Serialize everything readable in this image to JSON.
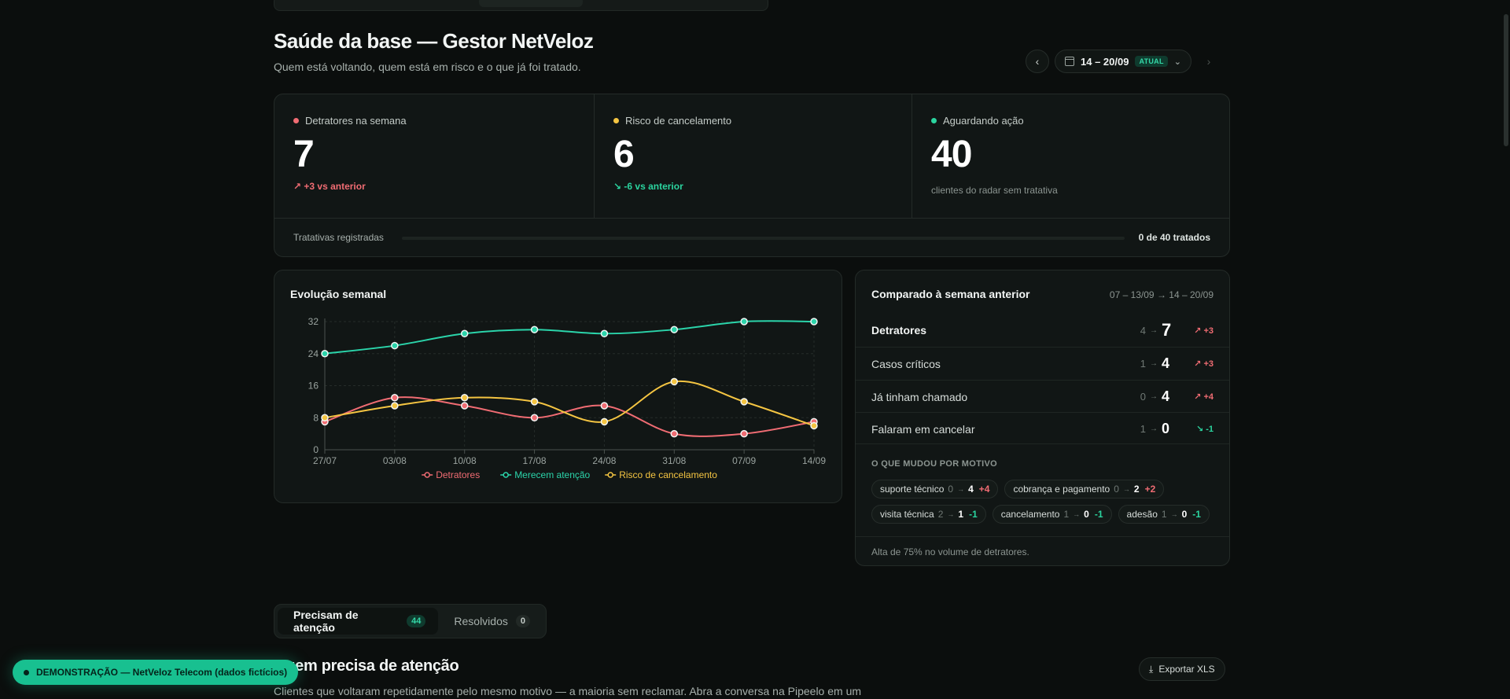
{
  "header": {
    "title": "Saúde da base — Gestor NetVeloz",
    "subtitle": "Quem está voltando, quem está em risco e o que já foi tratado."
  },
  "week_nav": {
    "range": "14 – 20/09",
    "badge": "ATUAL",
    "prev_icon": "chevron-left-icon",
    "next_icon": "chevron-right-icon"
  },
  "kpis": [
    {
      "label": "Detratores na semana",
      "value": "7",
      "delta": "+3 vs anterior",
      "color": "#f06c73"
    },
    {
      "label": "Risco de cancelamento",
      "value": "6",
      "delta": "-6 vs anterior",
      "color": "#f5c542"
    },
    {
      "label": "Aguardando ação",
      "value": "40",
      "note": "clientes do radar sem tratativa",
      "color": "#2bd49f"
    }
  ],
  "progress": {
    "label": "Tratativas registradas",
    "count": "0 de 40 tratados",
    "fraction": 0
  },
  "chart_card": {
    "title": "Evolução semanal"
  },
  "chart_data": {
    "type": "line",
    "title": "Evolução semanal",
    "x": [
      "27/07",
      "03/08",
      "10/08",
      "17/08",
      "24/08",
      "31/08",
      "07/09",
      "14/09"
    ],
    "y_ticks": [
      0,
      8,
      16,
      24,
      32
    ],
    "ylim": [
      0,
      32
    ],
    "grid": true,
    "legend_position": "bottom",
    "series": [
      {
        "name": "Detratores",
        "color": "#f06c73",
        "values": [
          7,
          13,
          11,
          8,
          11,
          4,
          4,
          7
        ]
      },
      {
        "name": "Merecem atenção",
        "color": "#2bd4aa",
        "values": [
          24,
          26,
          29,
          30,
          29,
          30,
          32,
          32
        ]
      },
      {
        "name": "Risco de cancelamento",
        "color": "#f5c542",
        "values": [
          8,
          11,
          13,
          12,
          7,
          17,
          12,
          6
        ]
      }
    ]
  },
  "comparison": {
    "title": "Comparado à semana anterior",
    "range": "07 – 13/09 → 14 – 20/09",
    "rows": [
      {
        "name": "Detratores",
        "old": "4",
        "new": "7",
        "delta": "+3",
        "dir": "up"
      },
      {
        "name": "Casos críticos",
        "old": "1",
        "new": "4",
        "delta": "+3",
        "dir": "up"
      },
      {
        "name": "Já tinham chamado",
        "old": "0",
        "new": "4",
        "delta": "+4",
        "dir": "up"
      },
      {
        "name": "Falaram em cancelar",
        "old": "1",
        "new": "0",
        "delta": "-1",
        "dir": "down"
      }
    ],
    "motivo_title": "O QUE MUDOU POR MOTIVO",
    "chips": [
      {
        "name": "suporte técnico",
        "old": "0",
        "new": "4",
        "delta": "+4",
        "dir": "up"
      },
      {
        "name": "cobrança e pagamento",
        "old": "0",
        "new": "2",
        "delta": "+2",
        "dir": "up"
      },
      {
        "name": "visita técnica",
        "old": "2",
        "new": "1",
        "delta": "-1",
        "dir": "down"
      },
      {
        "name": "cancelamento",
        "old": "1",
        "new": "0",
        "delta": "-1",
        "dir": "down"
      },
      {
        "name": "adesão",
        "old": "1",
        "new": "0",
        "delta": "-1",
        "dir": "down"
      }
    ],
    "footer": "Alta de 75% no volume de detratores."
  },
  "tabs": [
    {
      "label": "Precisam de atenção",
      "count": "44"
    },
    {
      "label": "Resolvidos",
      "count": "0"
    }
  ],
  "section": {
    "title": "Quem precisa de atenção",
    "subtitle": "Clientes que voltaram repetidamente pelo mesmo motivo — a maioria sem reclamar. Abra a conversa na Pipeelo em um",
    "export_label": "Exportar XLS",
    "export_icon": "download-icon"
  },
  "demo_banner": "DEMONSTRAÇÃO — NetVeloz Telecom (dados fictícios)"
}
